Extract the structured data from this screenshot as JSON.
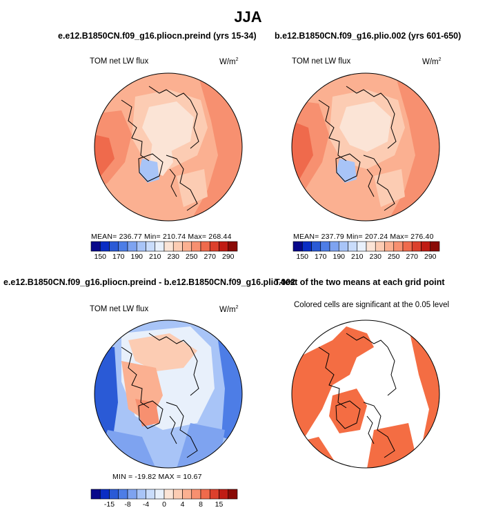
{
  "title": "JJA",
  "colors": {
    "significant": "#f46d43",
    "coast": "#000000"
  },
  "panels": {
    "top_left": {
      "title": "e.e12.B1850CN.f09_g16.pliocn.preind (yrs 15-34)",
      "variable": "TOM net LW flux",
      "units": "W/m",
      "units_sup": "2",
      "stats_text": "MEAN= 236.77   Min= 210.74   Max= 268.44"
    },
    "top_right": {
      "title": "b.e12.B1850CN.f09_g16.plio.002 (yrs 601-650)",
      "variable": "TOM net LW flux",
      "units": "W/m",
      "units_sup": "2",
      "stats_text": "MEAN= 237.79   Min= 207.24   Max= 276.40"
    },
    "bottom_left": {
      "title": "e.e12.B1850CN.f09_g16.pliocn.preind - b.e12.B1850CN.f09_g16.plio.002",
      "variable": "TOM net LW flux",
      "units": "W/m",
      "units_sup": "2",
      "stats_text": "MIN = -19.82  MAX = 10.67"
    },
    "bottom_right": {
      "title": "T-test of the two means at each grid point",
      "subtitle": "Colored cells are significant at the 0.05 level"
    }
  },
  "chart_data": [
    {
      "type": "heatmap",
      "projection": "north-polar-stereographic",
      "title": "e.e12.B1850CN.f09_g16.pliocn.preind (yrs 15-34)",
      "variable": "TOM net LW flux",
      "units": "W/m2",
      "mean": 236.77,
      "min": 210.74,
      "max": 268.44,
      "colorbar": {
        "levels": [
          150,
          160,
          170,
          180,
          190,
          200,
          210,
          220,
          230,
          240,
          250,
          260,
          270,
          280,
          290
        ],
        "tick_labels": [
          "150",
          "170",
          "190",
          "210",
          "230",
          "250",
          "270",
          "290"
        ],
        "colors": [
          "#08088a",
          "#0a2dc4",
          "#2a5ad6",
          "#4d7de6",
          "#7ea3f0",
          "#a8c4f7",
          "#c9dcfb",
          "#e8f0fb",
          "#fbe4d6",
          "#fcccb3",
          "#fbb091",
          "#f79070",
          "#ef6a4c",
          "#dc402c",
          "#c01c14",
          "#8a0a06"
        ]
      }
    },
    {
      "type": "heatmap",
      "projection": "north-polar-stereographic",
      "title": "b.e12.B1850CN.f09_g16.plio.002 (yrs 601-650)",
      "variable": "TOM net LW flux",
      "units": "W/m2",
      "mean": 237.79,
      "min": 207.24,
      "max": 276.4,
      "colorbar": {
        "levels": [
          150,
          160,
          170,
          180,
          190,
          200,
          210,
          220,
          230,
          240,
          250,
          260,
          270,
          280,
          290
        ],
        "tick_labels": [
          "150",
          "170",
          "190",
          "210",
          "230",
          "250",
          "270",
          "290"
        ],
        "colors": [
          "#08088a",
          "#0a2dc4",
          "#2a5ad6",
          "#4d7de6",
          "#7ea3f0",
          "#a8c4f7",
          "#c9dcfb",
          "#e8f0fb",
          "#fbe4d6",
          "#fcccb3",
          "#fbb091",
          "#f79070",
          "#ef6a4c",
          "#dc402c",
          "#c01c14",
          "#8a0a06"
        ]
      }
    },
    {
      "type": "heatmap",
      "projection": "north-polar-stereographic",
      "title": "e.e12.B1850CN.f09_g16.pliocn.preind - b.e12.B1850CN.f09_g16.plio.002",
      "variable": "TOM net LW flux",
      "units": "W/m2",
      "min": -19.82,
      "max": 10.67,
      "colorbar": {
        "levels": [
          -20,
          -15,
          -10,
          -8,
          -6,
          -4,
          -2,
          0,
          2,
          4,
          6,
          8,
          10,
          15,
          20
        ],
        "tick_labels": [
          "-15",
          "-8",
          "-4",
          "0",
          "4",
          "8",
          "15"
        ],
        "colors": [
          "#08088a",
          "#0a2dc4",
          "#2a5ad6",
          "#4d7de6",
          "#7ea3f0",
          "#a8c4f7",
          "#c9dcfb",
          "#e8f0fb",
          "#fbe4d6",
          "#fcccb3",
          "#fbb091",
          "#f79070",
          "#ef6a4c",
          "#dc402c",
          "#c01c14",
          "#8a0a06"
        ]
      }
    },
    {
      "type": "heatmap",
      "projection": "north-polar-stereographic",
      "title": "T-test of the two means at each grid point",
      "note": "Colored cells are significant at the 0.05 level",
      "significance_level": 0.05
    }
  ]
}
